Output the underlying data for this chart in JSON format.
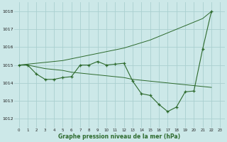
{
  "hours": [
    0,
    1,
    2,
    3,
    4,
    5,
    6,
    7,
    8,
    9,
    10,
    11,
    12,
    13,
    14,
    15,
    16,
    17,
    18,
    19,
    20,
    21,
    22,
    23
  ],
  "line1": [
    1015.0,
    1015.0,
    1014.5,
    1014.2,
    1014.2,
    1014.3,
    1014.35,
    1015.0,
    1015.0,
    1015.2,
    1015.0,
    1015.05,
    1015.1,
    1014.1,
    1013.4,
    1013.3,
    1012.8,
    1012.4,
    1012.65,
    1013.5,
    1013.55,
    1015.9,
    1018.0,
    null
  ],
  "line2": [
    1015.0,
    1015.0,
    1014.9,
    1014.8,
    1014.75,
    1014.7,
    1014.6,
    1014.55,
    1014.5,
    1014.45,
    1014.4,
    1014.35,
    1014.3,
    1014.2,
    1014.15,
    1014.1,
    1014.05,
    1014.0,
    1013.95,
    1013.9,
    1013.85,
    1013.8,
    1013.75,
    null
  ],
  "line3": [
    1015.0,
    1015.05,
    1015.1,
    1015.15,
    1015.2,
    1015.25,
    1015.35,
    1015.45,
    1015.55,
    1015.65,
    1015.75,
    1015.85,
    1015.95,
    1016.1,
    1016.25,
    1016.4,
    1016.6,
    1016.8,
    1017.0,
    1017.2,
    1017.4,
    1017.6,
    1018.0,
    null
  ],
  "bg_color": "#cce8e8",
  "grid_color": "#aad0d0",
  "line_color": "#2d6a2d",
  "ylabel_ticks": [
    1012,
    1013,
    1014,
    1015,
    1016,
    1017,
    1018
  ],
  "xlabel": "Graphe pression niveau de la mer (hPa)",
  "ylim": [
    1011.5,
    1018.5
  ],
  "xlim": [
    -0.5,
    23.5
  ]
}
